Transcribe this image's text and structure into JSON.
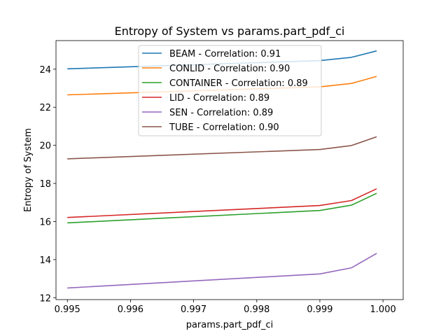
{
  "chart_data": {
    "type": "line",
    "title": "Entropy of System vs params.part_pdf_ci",
    "xlabel": "params.part_pdf_ci",
    "ylabel": "Entropy of System",
    "xlim": [
      0.99482,
      1.00032
    ],
    "ylim": [
      11.9,
      25.5
    ],
    "xticks": [
      0.995,
      0.996,
      0.997,
      0.998,
      0.999,
      1.0
    ],
    "xtick_labels": [
      "0.995",
      "0.996",
      "0.997",
      "0.998",
      "0.999",
      "1.000"
    ],
    "yticks": [
      12,
      14,
      16,
      18,
      20,
      22,
      24
    ],
    "ytick_labels": [
      "12",
      "14",
      "16",
      "18",
      "20",
      "22",
      "24"
    ],
    "x": [
      0.995,
      0.999,
      0.9995,
      0.9999
    ],
    "series": [
      {
        "name": "BEAM - Correlation: 0.91",
        "color": "#1f77b4",
        "values": [
          24.02,
          24.45,
          24.62,
          24.96
        ]
      },
      {
        "name": "CONLID - Correlation: 0.90",
        "color": "#ff7f0e",
        "values": [
          22.65,
          23.07,
          23.25,
          23.62
        ]
      },
      {
        "name": "CONTAINER - Correlation: 0.89",
        "color": "#2ca02c",
        "values": [
          15.93,
          16.58,
          16.86,
          17.48
        ]
      },
      {
        "name": "LID - Correlation: 0.89",
        "color": "#d62728",
        "values": [
          16.21,
          16.84,
          17.1,
          17.72
        ]
      },
      {
        "name": "SEN - Correlation: 0.89",
        "color": "#9467bd",
        "values": [
          12.51,
          13.25,
          13.57,
          14.33
        ]
      },
      {
        "name": "TUBE - Correlation: 0.90",
        "color": "#8c564b",
        "values": [
          19.29,
          19.78,
          19.99,
          20.45
        ]
      }
    ],
    "grid": false,
    "legend_position": "top-center"
  }
}
